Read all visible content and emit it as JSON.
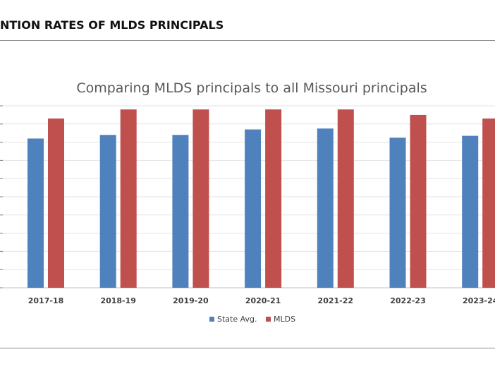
{
  "page": {
    "header": "NTION RATES OF MLDS PRINCIPALS"
  },
  "chart_data": {
    "type": "bar",
    "title": "Comparing MLDS principals to all Missouri principals",
    "xlabel": "",
    "ylabel": "",
    "categories": [
      "2017-18",
      "2018-19",
      "2019-20",
      "2020-21",
      "2021-22",
      "2022-23",
      "2023-24"
    ],
    "series": [
      {
        "name": "State Avg.",
        "color": "#4f81bd",
        "values": [
          82,
          84,
          84,
          87,
          87.5,
          82.5,
          83.5
        ]
      },
      {
        "name": "MLDS",
        "color": "#c0504d",
        "values": [
          93,
          98,
          98,
          98,
          98,
          95,
          93
        ]
      }
    ],
    "ylim": [
      0,
      100
    ],
    "grid": true,
    "legend_position": "bottom",
    "tick_labels_visible": false
  }
}
